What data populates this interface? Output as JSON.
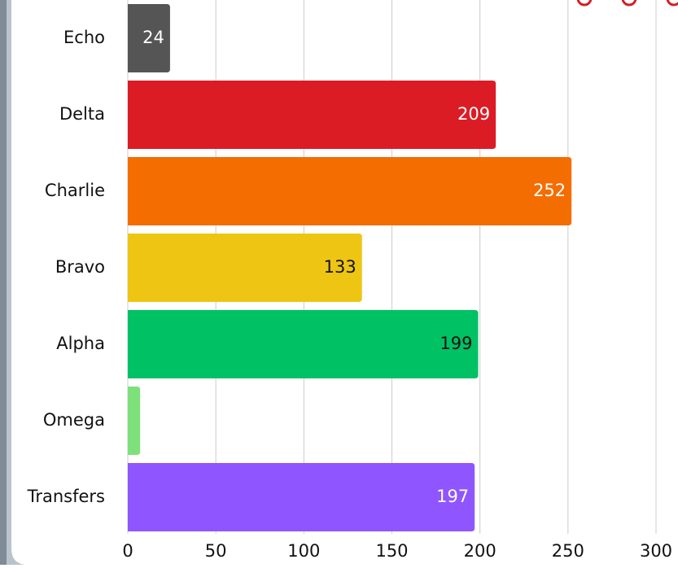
{
  "chart_data": {
    "type": "hbar",
    "categories": [
      "Echo",
      "Delta",
      "Charlie",
      "Bravo",
      "Alpha",
      "Omega",
      "Transfers"
    ],
    "values": [
      24,
      209,
      252,
      133,
      199,
      7,
      197
    ],
    "colors": [
      "#555555",
      "#dc1c24",
      "#f46d00",
      "#eec513",
      "#00c164",
      "#7ee07a",
      "#8f55ff"
    ],
    "label_colors": [
      "#ffffff",
      "#ffffff",
      "#ffffff",
      "#111111",
      "#111111",
      "#111111",
      "#ffffff"
    ],
    "xlim": [
      0,
      300
    ],
    "xticks": [
      0,
      50,
      100,
      150,
      200,
      250,
      300
    ],
    "grid": true
  }
}
